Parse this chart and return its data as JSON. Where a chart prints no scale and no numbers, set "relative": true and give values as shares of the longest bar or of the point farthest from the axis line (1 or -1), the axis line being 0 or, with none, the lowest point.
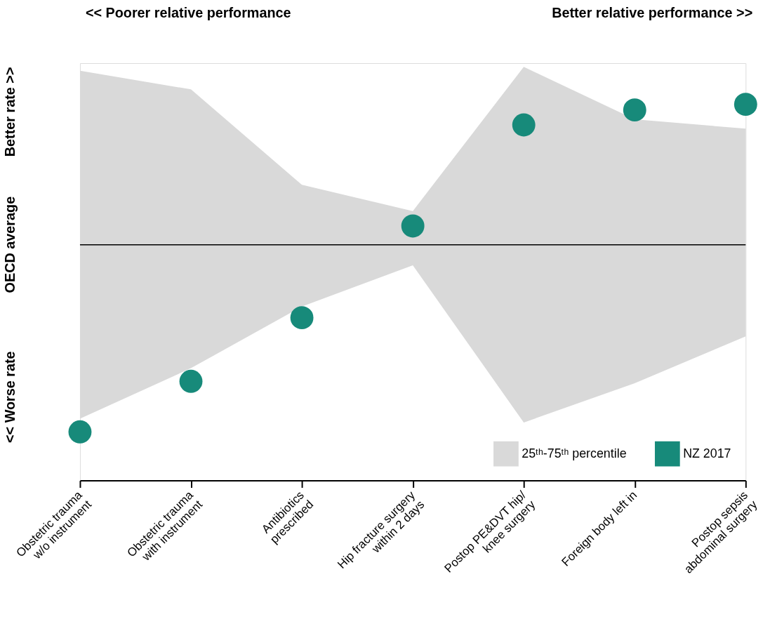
{
  "chart_data": {
    "type": "scatter",
    "relative": true,
    "categories": [
      "Obstetric trauma\nw/o instrument",
      "Obstetric trauma\nwith instrument",
      "Antibiotics\nprescribed",
      "Hip fracture surgery\nwithin 2 days",
      "Postop PE&DVT hip/\nknee surgery",
      "Foreign body left in",
      "Postop sepsis\nabdominal surgery"
    ],
    "series": [
      {
        "name": "25ᵗʰ-75ᵗʰ percentile",
        "type": "area",
        "color": "#d9d9d9",
        "values": [
          null,
          null,
          null,
          null,
          null,
          null,
          null
        ],
        "upper": [
          0.93,
          0.83,
          0.32,
          0.18,
          0.95,
          0.67,
          0.62
        ],
        "lower": [
          -0.93,
          -0.66,
          -0.33,
          -0.11,
          -0.95,
          -0.74,
          -0.49
        ]
      },
      {
        "name": "NZ 2017",
        "marker": "circle",
        "color": "#178a7a",
        "values": [
          -1,
          -0.73,
          -0.39,
          0.1,
          0.64,
          0.72,
          0.75
        ]
      }
    ],
    "ref_lines": [
      {
        "axis": "y",
        "value": 0,
        "label": "OECD average",
        "color": "#000000"
      }
    ],
    "annotations": [
      "<< Poorer relative performance",
      "Better relative performance >>",
      "Better rate >>",
      "<< Worse rate"
    ],
    "grid": false,
    "legend": "bottom right"
  }
}
